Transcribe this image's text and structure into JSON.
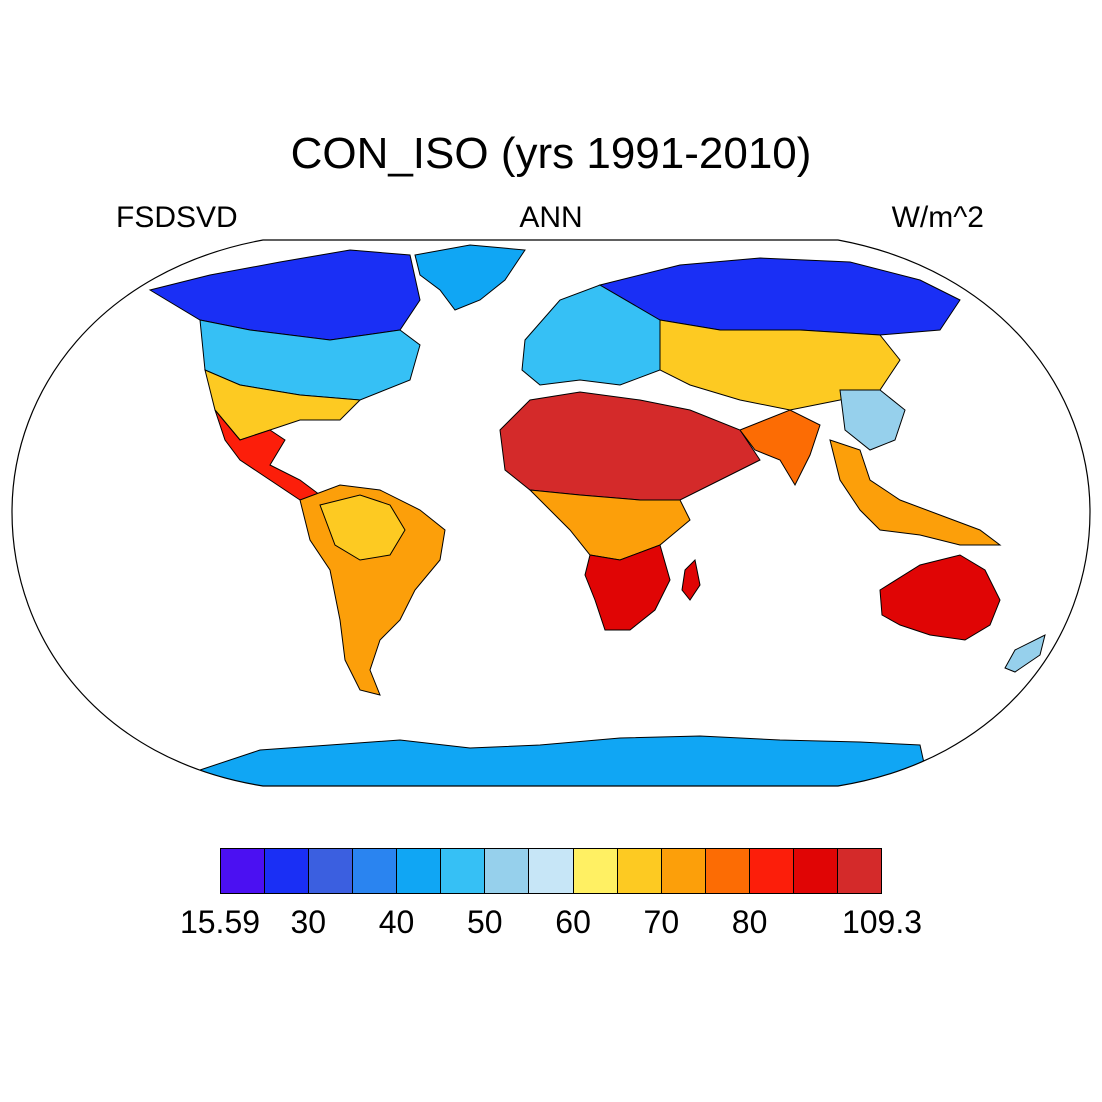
{
  "title": "CON_ISO (yrs 1991-2010)",
  "left_label": "FSDSVD",
  "center_label": "ANN",
  "right_label": "W/m^2",
  "colorbar": {
    "colors": [
      "#4b10f2",
      "#1a2ff5",
      "#3b5fe0",
      "#2a84f0",
      "#10a6f4",
      "#36c0f5",
      "#96d0ec",
      "#c7e6f7",
      "#fff063",
      "#fdca22",
      "#fc9f0a",
      "#fc6c04",
      "#fc1e0a",
      "#e00505",
      "#d42a2a"
    ],
    "labels": [
      "15.59",
      "30",
      "40",
      "50",
      "60",
      "70",
      "80",
      "109.3"
    ],
    "label_positions": [
      0,
      1,
      2,
      3,
      4,
      5,
      6,
      7
    ]
  },
  "map": {
    "projection": "Robinson",
    "regions": [
      {
        "name": "north-america-arctic",
        "color": "#1a2ff5"
      },
      {
        "name": "north-america-mid",
        "color": "#36c0f5"
      },
      {
        "name": "north-america-south",
        "color": "#fdca22"
      },
      {
        "name": "mexico",
        "color": "#fc1e0a"
      },
      {
        "name": "greenland",
        "color": "#10a6f4"
      },
      {
        "name": "south-america",
        "color": "#fc9f0a"
      },
      {
        "name": "amazon",
        "color": "#fdca22"
      },
      {
        "name": "europe",
        "color": "#36c0f5"
      },
      {
        "name": "siberia",
        "color": "#1a2ff5"
      },
      {
        "name": "central-asia",
        "color": "#fdca22"
      },
      {
        "name": "africa-sahara",
        "color": "#d42a2a"
      },
      {
        "name": "africa-central",
        "color": "#fc9f0a"
      },
      {
        "name": "africa-south",
        "color": "#e00505"
      },
      {
        "name": "india",
        "color": "#fc6c04"
      },
      {
        "name": "china",
        "color": "#96d0ec"
      },
      {
        "name": "southeast-asia",
        "color": "#fc9f0a"
      },
      {
        "name": "australia",
        "color": "#e00505"
      },
      {
        "name": "antarctica",
        "color": "#10a6f4"
      }
    ]
  }
}
